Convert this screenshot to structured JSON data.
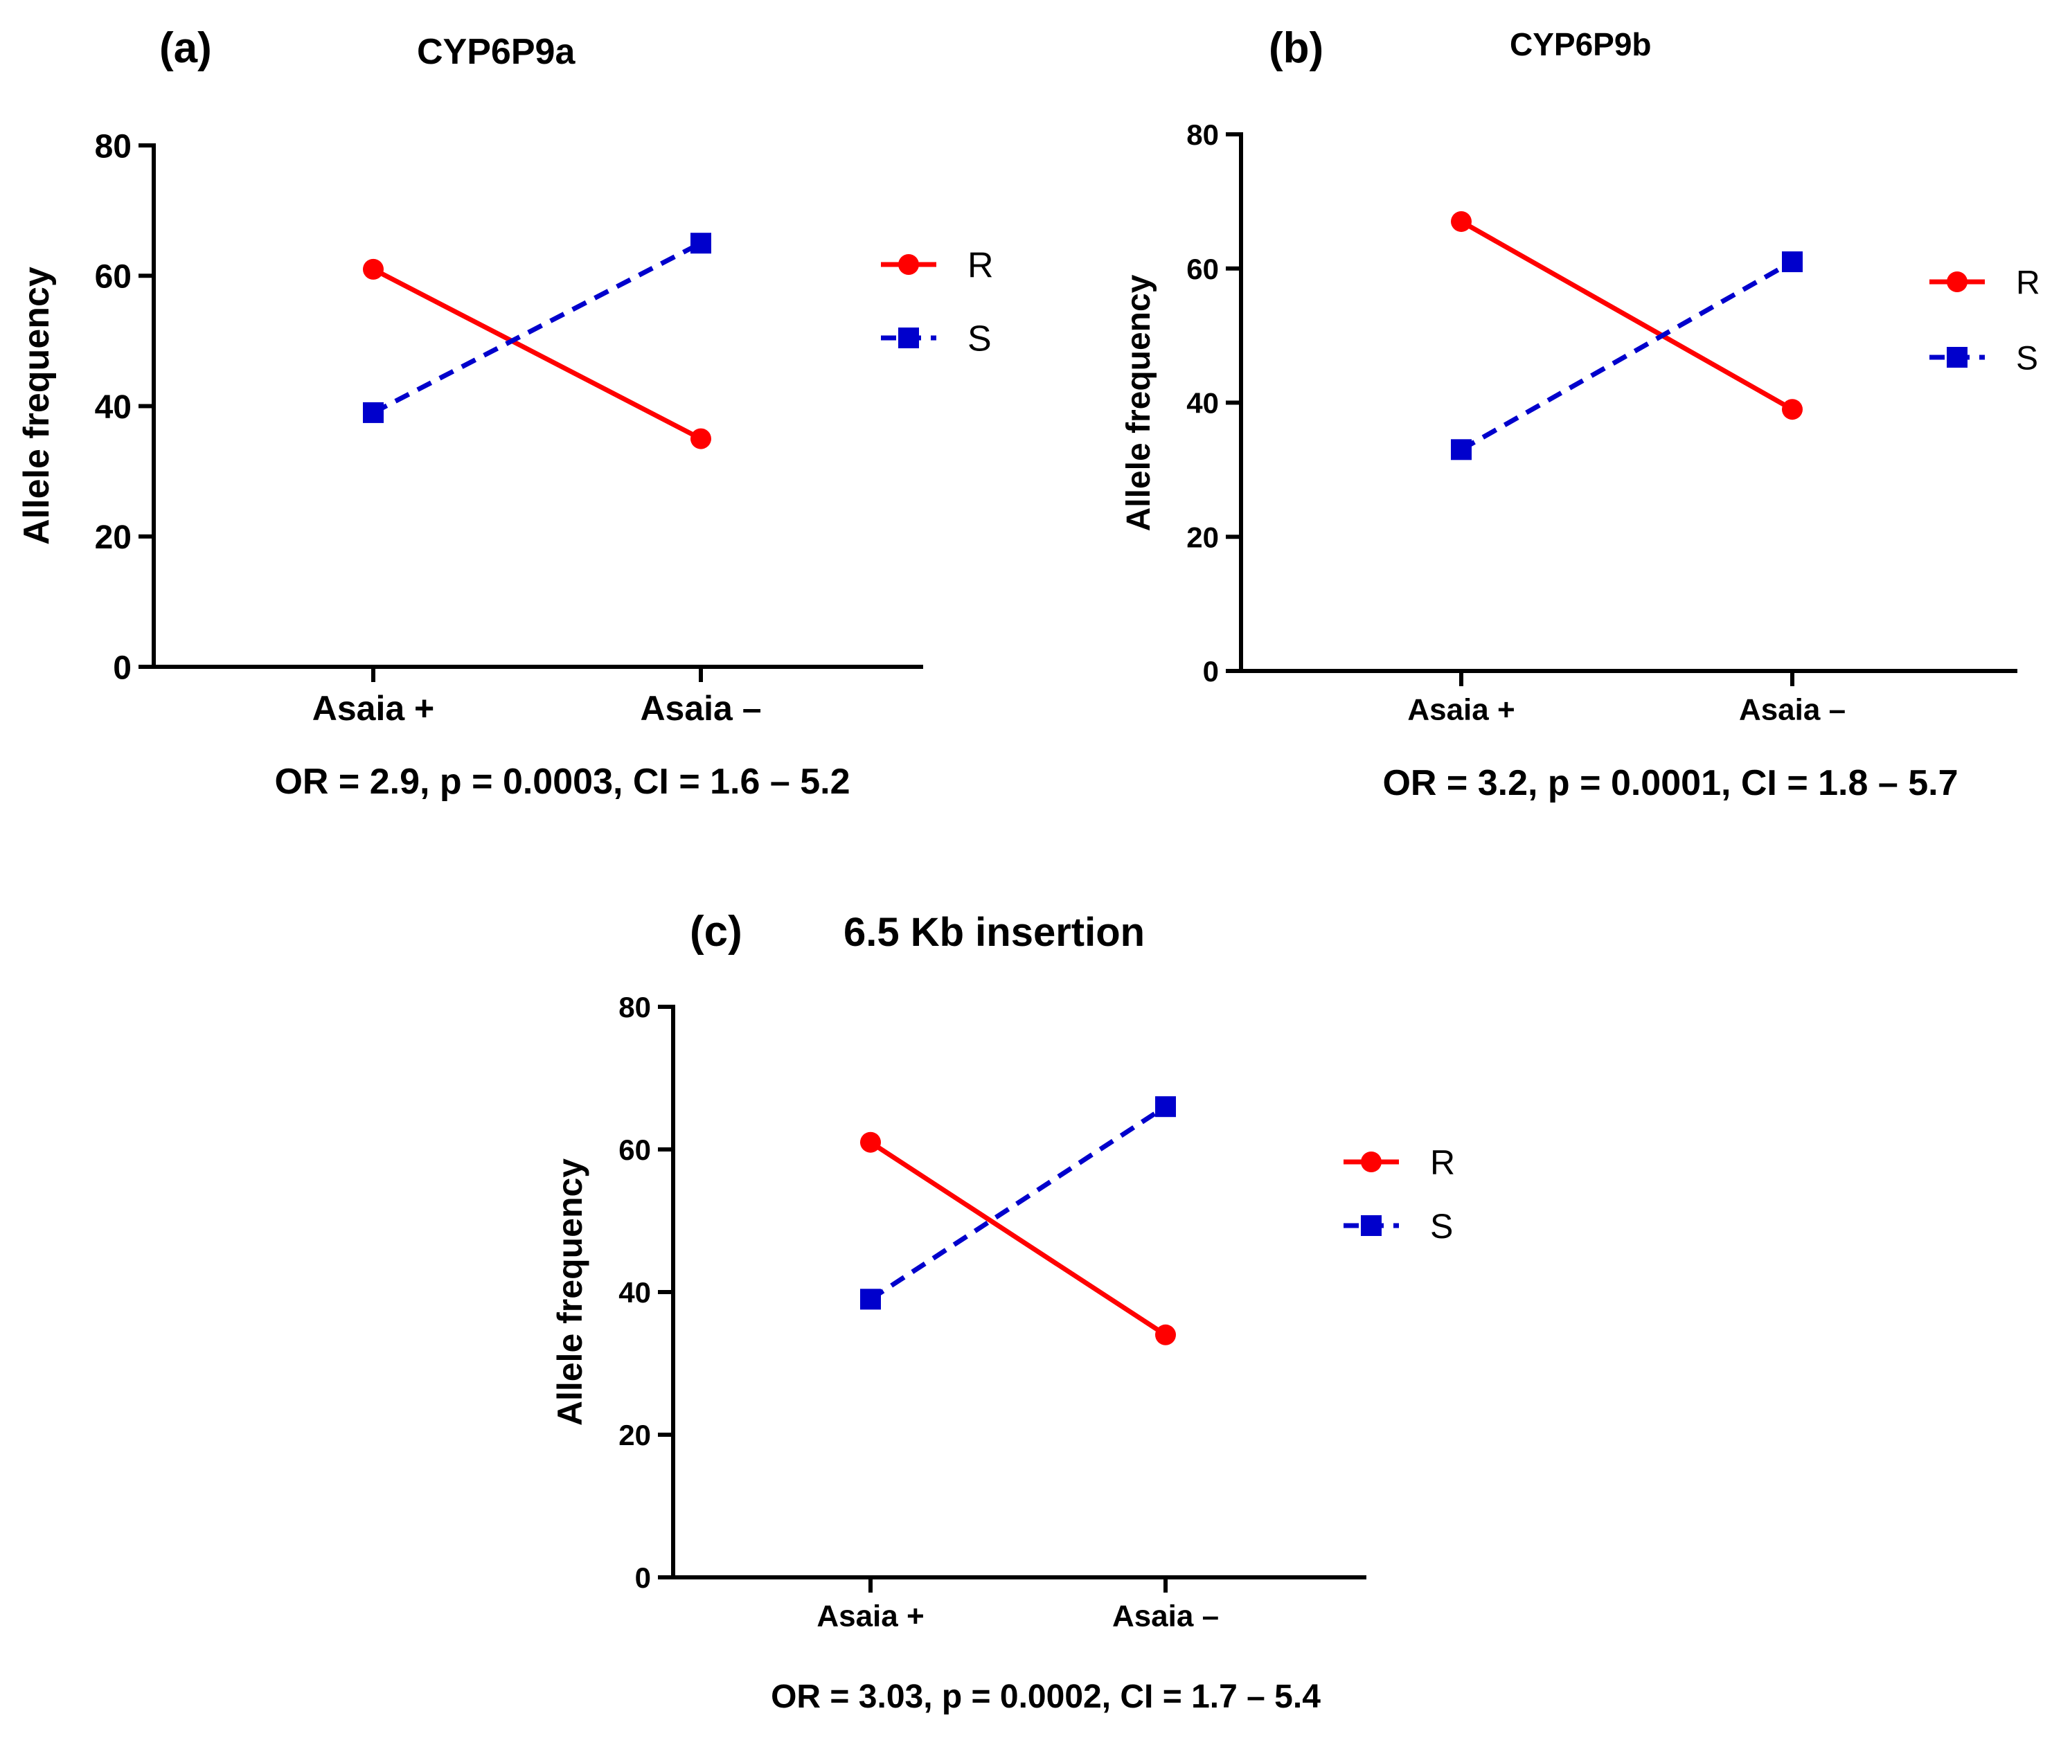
{
  "figure": {
    "panels": [
      {
        "id": "a",
        "label": "(a)",
        "gene": "CYP6P9a",
        "stats": "OR = 2.9, p = 0.0003, CI = 1.6 – 5.2"
      },
      {
        "id": "b",
        "label": "(b)",
        "gene": "CYP6P9b",
        "stats": "OR = 3.2, p = 0.0001, CI = 1.8 – 5.7"
      },
      {
        "id": "c",
        "label": "(c)",
        "gene": "6.5 Kb insertion",
        "stats": "OR = 3.03, p = 0.0002, CI = 1.7 – 5.4"
      }
    ]
  },
  "chart_data": [
    {
      "type": "line",
      "title": "CYP6P9a",
      "panel_label": "(a)",
      "categories": [
        "Asaia +",
        "Asaia –"
      ],
      "xlabel": "",
      "ylabel": "Allele frequency",
      "ylim": [
        0,
        80
      ],
      "yticks": [
        0,
        20,
        40,
        60,
        80
      ],
      "legend_position": "right",
      "series": [
        {
          "name": "R",
          "values": [
            61,
            35
          ],
          "color": "#ff0000",
          "marker": "circle",
          "line": "solid"
        },
        {
          "name": "S",
          "values": [
            39,
            65
          ],
          "color": "#0000cc",
          "marker": "square",
          "line": "dashed"
        }
      ],
      "annotation": "OR = 2.9, p = 0.0003, CI = 1.6 – 5.2"
    },
    {
      "type": "line",
      "title": "CYP6P9b",
      "panel_label": "(b)",
      "categories": [
        "Asaia +",
        "Asaia –"
      ],
      "xlabel": "",
      "ylabel": "Allele frequency",
      "ylim": [
        0,
        80
      ],
      "yticks": [
        0,
        20,
        40,
        60,
        80
      ],
      "legend_position": "right",
      "series": [
        {
          "name": "R",
          "values": [
            67,
            39
          ],
          "color": "#ff0000",
          "marker": "circle",
          "line": "solid"
        },
        {
          "name": "S",
          "values": [
            33,
            61
          ],
          "color": "#0000cc",
          "marker": "square",
          "line": "dashed"
        }
      ],
      "annotation": "OR = 3.2, p = 0.0001, CI = 1.8 – 5.7"
    },
    {
      "type": "line",
      "title": "6.5 Kb insertion",
      "panel_label": "(c)",
      "categories": [
        "Asaia +",
        "Asaia –"
      ],
      "xlabel": "",
      "ylabel": "Allele frequency",
      "ylim": [
        0,
        80
      ],
      "yticks": [
        0,
        20,
        40,
        60,
        80
      ],
      "legend_position": "right",
      "series": [
        {
          "name": "R",
          "values": [
            61,
            34
          ],
          "color": "#ff0000",
          "marker": "circle",
          "line": "solid"
        },
        {
          "name": "S",
          "values": [
            39,
            66
          ],
          "color": "#0000cc",
          "marker": "square",
          "line": "dashed"
        }
      ],
      "annotation": "OR = 3.03, p = 0.0002, CI = 1.7 – 5.4"
    }
  ]
}
